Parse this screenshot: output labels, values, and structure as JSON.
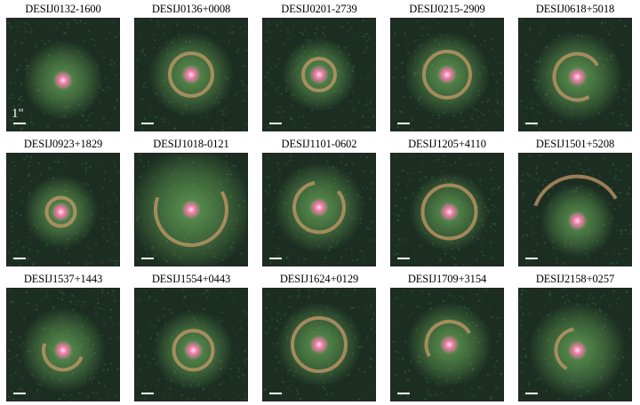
{
  "panels": [
    {
      "id": "DESIJ0132-1600",
      "scale_label": "1\""
    },
    {
      "id": "DESIJ0136+0008",
      "scale_label": ""
    },
    {
      "id": "DESIJ0201-2739",
      "scale_label": ""
    },
    {
      "id": "DESIJ0215-2909",
      "scale_label": ""
    },
    {
      "id": "DESIJ0618+5018",
      "scale_label": ""
    },
    {
      "id": "DESIJ0923+1829",
      "scale_label": ""
    },
    {
      "id": "DESIJ1018-0121",
      "scale_label": ""
    },
    {
      "id": "DESIJ1101-0602",
      "scale_label": ""
    },
    {
      "id": "DESIJ1205+4110",
      "scale_label": ""
    },
    {
      "id": "DESIJ1501+5208",
      "scale_label": ""
    },
    {
      "id": "DESIJ1537+1443",
      "scale_label": ""
    },
    {
      "id": "DESIJ1554+0443",
      "scale_label": ""
    },
    {
      "id": "DESIJ1624+0129",
      "scale_label": ""
    },
    {
      "id": "DESIJ1709+3154",
      "scale_label": ""
    },
    {
      "id": "DESIJ2158+0257",
      "scale_label": ""
    }
  ],
  "colors": {
    "background_noise": "#1c2e22",
    "halo": "#5f9a52",
    "core": "#f07aa8",
    "arc": "#c79a6a",
    "scale_bar": "#ffffff"
  }
}
